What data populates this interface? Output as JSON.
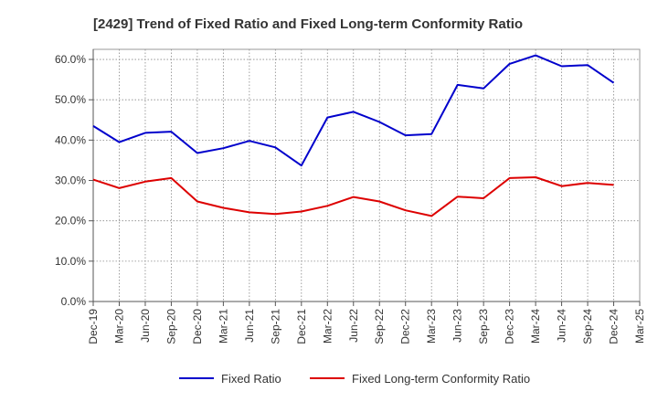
{
  "chart_data": {
    "type": "line",
    "title": "[2429]  Trend of Fixed Ratio and Fixed Long-term Conformity Ratio",
    "xlabel": "",
    "ylabel": "",
    "categories": [
      "Dec-19",
      "Mar-20",
      "Jun-20",
      "Sep-20",
      "Dec-20",
      "Mar-21",
      "Jun-21",
      "Sep-21",
      "Dec-21",
      "Mar-22",
      "Jun-22",
      "Sep-22",
      "Dec-22",
      "Mar-23",
      "Jun-23",
      "Sep-23",
      "Dec-23",
      "Mar-24",
      "Jun-24",
      "Sep-24",
      "Dec-24",
      "Mar-25"
    ],
    "y_ticks": [
      "0.0%",
      "10.0%",
      "20.0%",
      "30.0%",
      "40.0%",
      "50.0%",
      "60.0%"
    ],
    "ylim": [
      0,
      62.5
    ],
    "grid": true,
    "legend_position": "bottom",
    "series": [
      {
        "name": "Fixed Ratio",
        "color": "#0000cc",
        "values": [
          43.5,
          39.5,
          41.8,
          42.1,
          36.8,
          38.0,
          39.8,
          38.2,
          33.7,
          45.6,
          47.0,
          44.5,
          41.2,
          41.5,
          53.7,
          52.8,
          58.9,
          61.0,
          58.3,
          58.6,
          54.2,
          null
        ]
      },
      {
        "name": "Fixed Long-term Conformity Ratio",
        "color": "#dd0000",
        "values": [
          30.2,
          28.1,
          29.7,
          30.6,
          24.8,
          23.2,
          22.1,
          21.7,
          22.3,
          23.7,
          25.9,
          24.8,
          22.6,
          21.2,
          26.0,
          25.6,
          30.6,
          30.8,
          28.6,
          29.4,
          28.9,
          null
        ]
      }
    ]
  }
}
